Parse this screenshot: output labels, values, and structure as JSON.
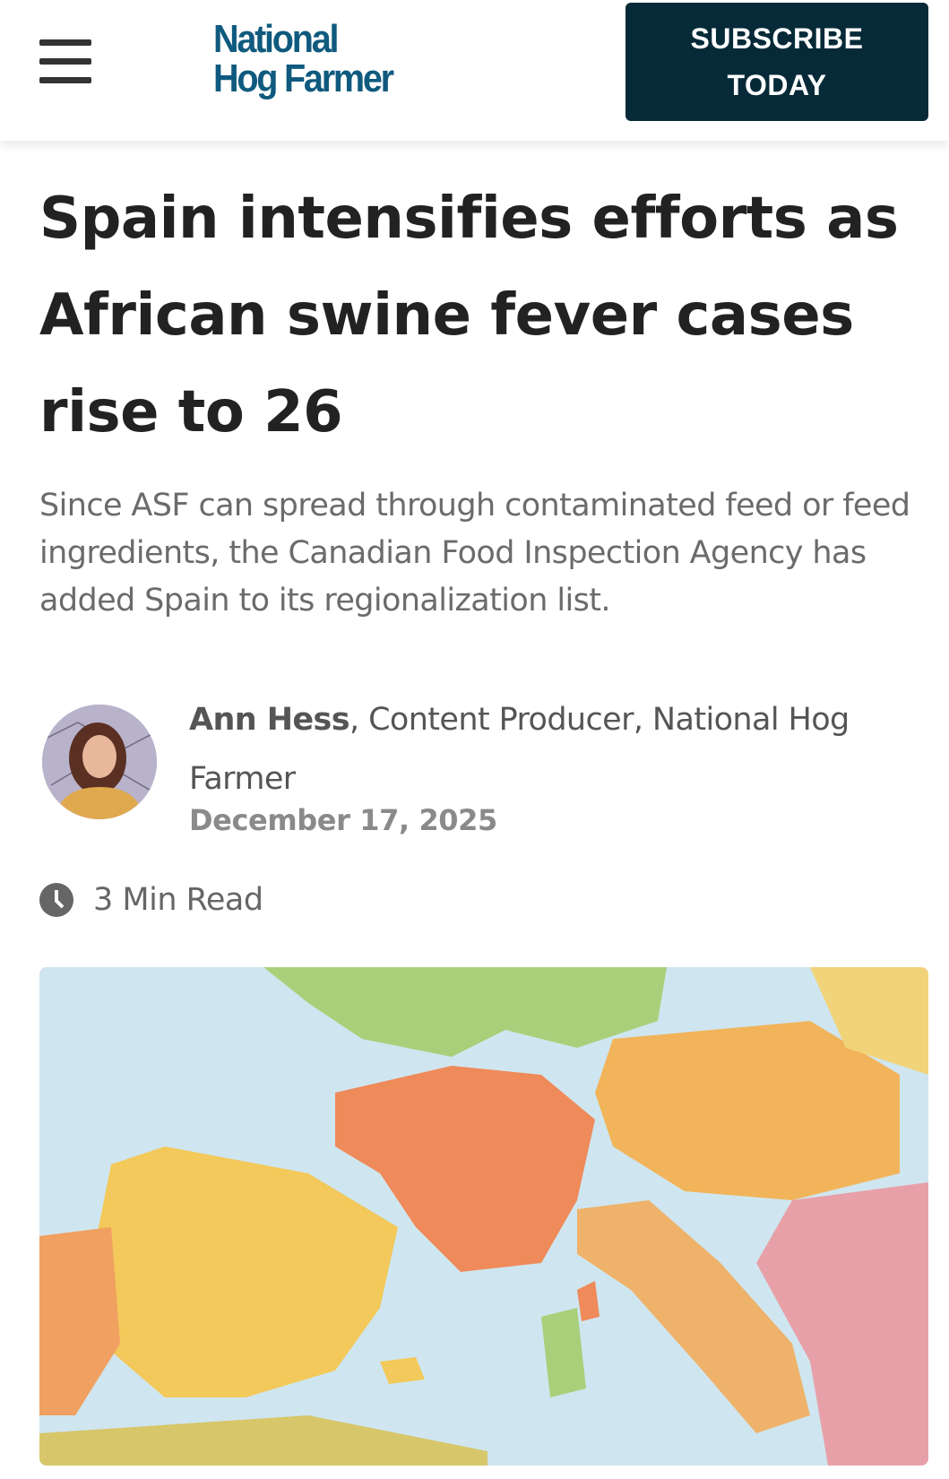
{
  "header": {
    "menu_icon": "hamburger-icon",
    "logo_line1": "National",
    "logo_line2": "Hog Farmer",
    "subscribe_line1": "SUBSCRIBE",
    "subscribe_line2": "TODAY",
    "brand_color": "#0f5a7e",
    "button_color": "#062a38"
  },
  "article": {
    "title": "Spain intensifies efforts as African swine fever cases rise to 26",
    "dek": "Since ASF can spread through contaminated feed or feed ingredients, the Canadian Food Inspection Agency has added Spain to its regionalization list.",
    "author_name": "Ann Hess",
    "author_role": ", Content Producer, National Hog Farmer",
    "date": "December 17, 2025",
    "read_time": "3 Min Read",
    "read_time_icon": "clock-icon",
    "hero_image": "map-of-western-europe"
  }
}
